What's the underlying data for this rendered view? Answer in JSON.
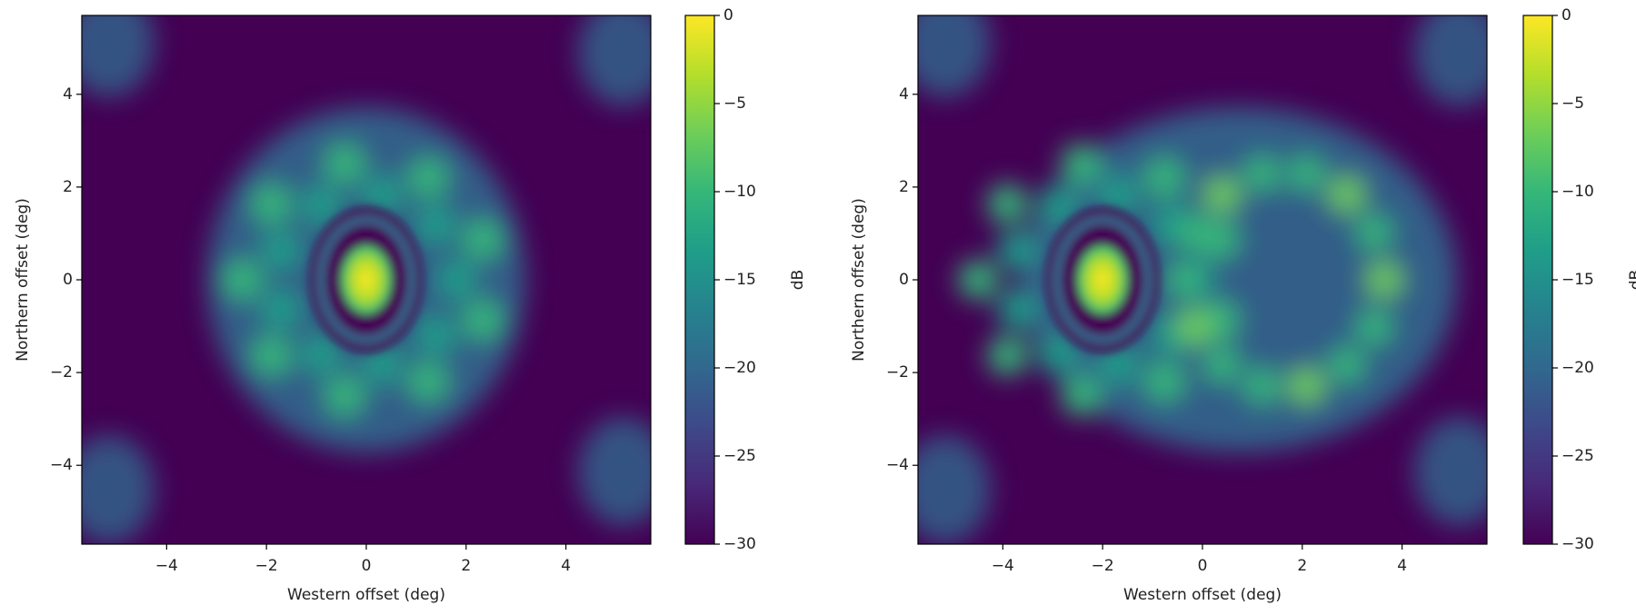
{
  "chart_data": [
    {
      "type": "heatmap",
      "colormap": "viridis",
      "xlabel": "Western offset (deg)",
      "ylabel": "Northern offset (deg)",
      "xlim": [
        -5.7,
        5.7
      ],
      "ylim": [
        -5.7,
        5.7
      ],
      "xticks": [
        {
          "value": -4,
          "label": "−4"
        },
        {
          "value": -2,
          "label": "−2"
        },
        0,
        2,
        4
      ],
      "yticks": [
        {
          "value": -4,
          "label": "−4"
        },
        {
          "value": -2,
          "label": "−2"
        },
        0,
        2,
        4
      ],
      "colorbar": {
        "label": "dB",
        "lim": [
          -30,
          0
        ],
        "ticks": [
          0,
          {
            "value": -5,
            "label": "−5"
          },
          {
            "value": -10,
            "label": "−10"
          },
          {
            "value": -15,
            "label": "−15"
          },
          {
            "value": -20,
            "label": "−20"
          },
          {
            "value": -25,
            "label": "−25"
          },
          {
            "value": -30,
            "label": "−30"
          }
        ]
      }
    },
    {
      "type": "heatmap",
      "colormap": "viridis",
      "xlabel": "Western offset (deg)",
      "ylabel": "Northern offset (deg)",
      "xlim": [
        -5.7,
        5.7
      ],
      "ylim": [
        -5.7,
        5.7
      ],
      "xticks": [
        {
          "value": -4,
          "label": "−4"
        },
        {
          "value": -2,
          "label": "−2"
        },
        0,
        2,
        4
      ],
      "yticks": [
        {
          "value": -4,
          "label": "−4"
        },
        {
          "value": -2,
          "label": "−2"
        },
        0,
        2,
        4
      ],
      "colorbar": {
        "label": "dB",
        "lim": [
          -30,
          0
        ],
        "ticks": [
          0,
          {
            "value": -5,
            "label": "−5"
          },
          {
            "value": -10,
            "label": "−10"
          },
          {
            "value": -15,
            "label": "−15"
          },
          {
            "value": -20,
            "label": "−20"
          },
          {
            "value": -25,
            "label": "−25"
          },
          {
            "value": -30,
            "label": "−30"
          }
        ]
      }
    }
  ]
}
